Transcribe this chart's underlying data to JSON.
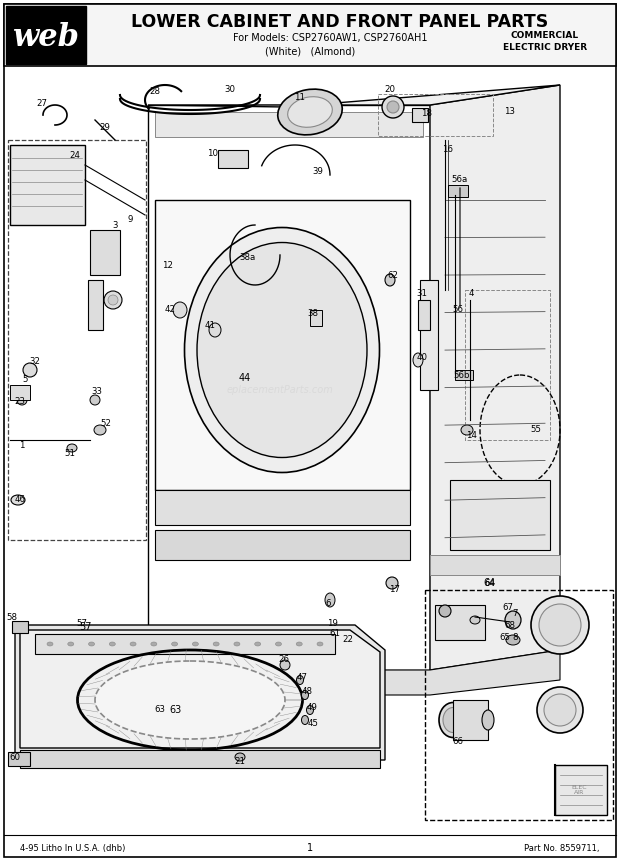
{
  "title_main": "LOWER CABINET AND FRONT PANEL PARTS",
  "title_sub1": "For Models: CSP2760AW1, CSP2760AH1",
  "title_sub2": "(White)   (Almond)",
  "title_right1": "COMMERCIAL",
  "title_right2": "ELECTRIC DRYER",
  "footer_left": "4-95 Litho In U.S.A. (dhb)",
  "footer_center": "1",
  "footer_right": "Part No. 8559711,",
  "bg_color": "#ffffff",
  "watermark": "eplacementParts.com",
  "lc": "#000000",
  "gc": "#888888"
}
